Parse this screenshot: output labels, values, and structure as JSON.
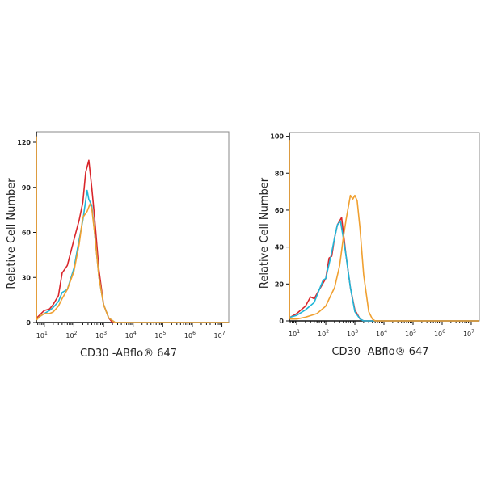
{
  "chart_data": [
    {
      "type": "line",
      "xscale": "log",
      "xlabel": "CD30 -ABflo® 647",
      "ylabel": "Relative Cell Number",
      "xlim": [
        5.4,
        17000000
      ],
      "ylim": [
        0,
        127
      ],
      "yticks": [
        0,
        30,
        60,
        90,
        120
      ],
      "xticks": [
        {
          "base": "10",
          "exp": "1"
        },
        {
          "base": "10",
          "exp": "2"
        },
        {
          "base": "10",
          "exp": "3"
        },
        {
          "base": "10",
          "exp": "4"
        },
        {
          "base": "10",
          "exp": "5"
        },
        {
          "base": "10",
          "exp": "6"
        },
        {
          "base": "10",
          "exp": "7"
        }
      ],
      "grid": false,
      "series": [
        {
          "color": "#d9262b",
          "x": [
            5.5,
            7,
            10,
            15,
            20,
            30,
            40,
            60,
            100,
            150,
            200,
            250,
            320,
            400,
            500,
            700,
            1000,
            1500,
            2000,
            17000000
          ],
          "y": [
            3,
            5,
            8,
            9,
            12,
            18,
            33,
            38,
            55,
            68,
            80,
            100,
            108,
            90,
            70,
            35,
            12,
            3,
            0,
            0
          ]
        },
        {
          "color": "#1fb6d8",
          "x": [
            5.5,
            7,
            10,
            15,
            20,
            30,
            40,
            60,
            100,
            150,
            200,
            280,
            320,
            400,
            500,
            700,
            1000,
            1500,
            2500,
            17000000
          ],
          "y": [
            2,
            4,
            6,
            8,
            10,
            14,
            20,
            22,
            36,
            55,
            68,
            88,
            82,
            78,
            60,
            30,
            12,
            3,
            0,
            0
          ]
        },
        {
          "color": "#f0a030",
          "x": [
            5.4,
            5.45,
            5.6,
            7,
            10,
            15,
            20,
            30,
            40,
            60,
            100,
            150,
            200,
            280,
            350,
            400,
            500,
            700,
            1000,
            1500,
            2500,
            17000000
          ],
          "y": [
            124,
            3,
            2,
            4,
            6,
            6,
            7,
            11,
            16,
            22,
            34,
            52,
            70,
            74,
            79,
            76,
            60,
            30,
            12,
            3,
            0,
            0
          ]
        }
      ]
    },
    {
      "type": "line",
      "xscale": "log",
      "xlabel": "CD30 -ABflo® 647",
      "ylabel": "Relative Cell Number",
      "xlim": [
        5.6,
        19000000
      ],
      "ylim": [
        0,
        102
      ],
      "yticks": [
        0,
        20,
        40,
        60,
        80,
        100
      ],
      "xticks": [
        {
          "base": "10",
          "exp": "1"
        },
        {
          "base": "10",
          "exp": "2"
        },
        {
          "base": "10",
          "exp": "3"
        },
        {
          "base": "10",
          "exp": "4"
        },
        {
          "base": "10",
          "exp": "5"
        },
        {
          "base": "10",
          "exp": "6"
        },
        {
          "base": "10",
          "exp": "7"
        }
      ],
      "grid": false,
      "series": [
        {
          "color": "#d9262b",
          "x": [
            6,
            10,
            20,
            30,
            40,
            60,
            100,
            130,
            160,
            200,
            250,
            350,
            400,
            500,
            700,
            1000,
            1500,
            2000,
            19000000
          ],
          "y": [
            2,
            4,
            8,
            13,
            12,
            17,
            23,
            34,
            35,
            45,
            52,
            56,
            48,
            35,
            18,
            6,
            1,
            0,
            0
          ]
        },
        {
          "color": "#1fb6d8",
          "x": [
            6,
            10,
            20,
            40,
            80,
            100,
            150,
            200,
            250,
            320,
            400,
            500,
            700,
            1000,
            1500,
            2000,
            19000000
          ],
          "y": [
            2,
            3,
            6,
            10,
            22,
            23,
            35,
            45,
            52,
            54,
            45,
            35,
            18,
            5,
            1,
            0,
            0
          ]
        },
        {
          "color": "#f0a030",
          "x": [
            5.6,
            5.65,
            6,
            10,
            20,
            50,
            100,
            150,
            200,
            300,
            400,
            500,
            700,
            850,
            1000,
            1200,
            1500,
            2000,
            3000,
            4000,
            5000,
            19000000
          ],
          "y": [
            98,
            2,
            1,
            1,
            2,
            4,
            8,
            14,
            18,
            30,
            45,
            55,
            68,
            66,
            68,
            65,
            50,
            25,
            5,
            1,
            0,
            0
          ]
        }
      ]
    }
  ]
}
